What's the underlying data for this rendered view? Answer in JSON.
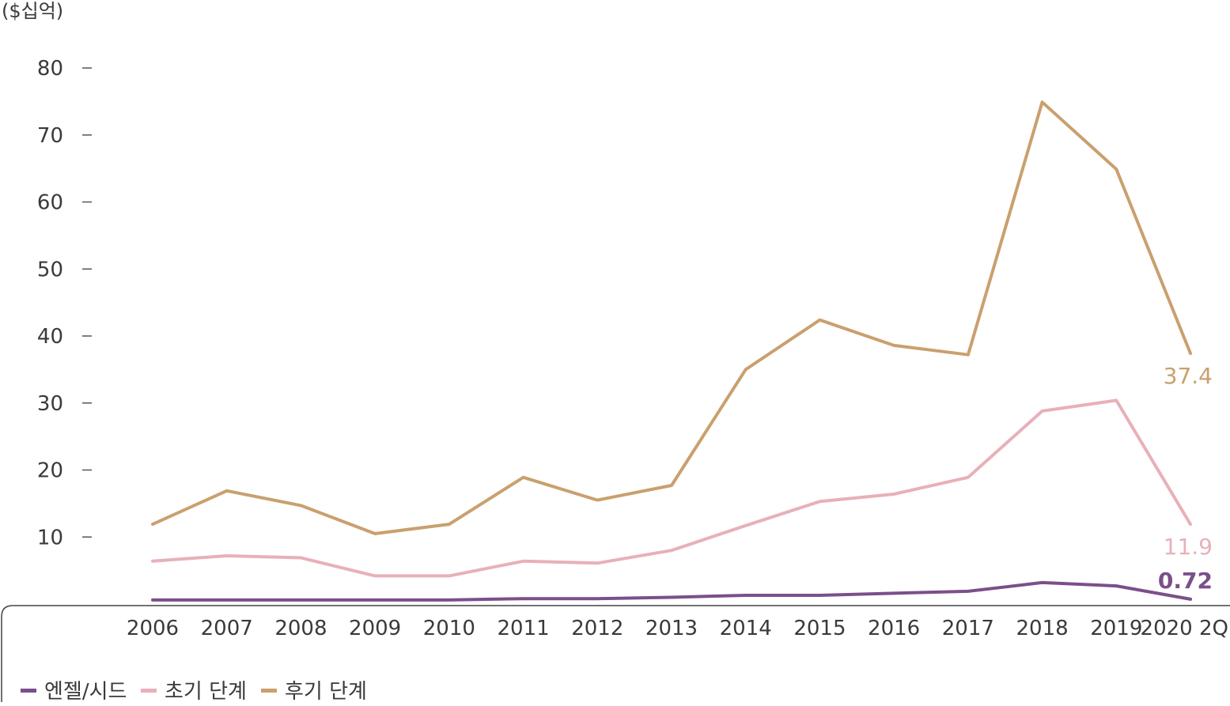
{
  "chart_data": {
    "type": "line",
    "unit_label": "($십억)",
    "categories": [
      "2006",
      "2007",
      "2008",
      "2009",
      "2010",
      "2011",
      "2012",
      "2013",
      "2014",
      "2015",
      "2016",
      "2017",
      "2018",
      "2019",
      "2020 2Q"
    ],
    "yticks": [
      10,
      20,
      30,
      40,
      50,
      60,
      70,
      80
    ],
    "ylim": [
      0,
      80
    ],
    "grid": false,
    "legend_position": "bottom-left",
    "series": [
      {
        "name": "엔젤/시드",
        "color": "#7b4f8a",
        "values": [
          0.6,
          0.6,
          0.6,
          0.6,
          0.6,
          0.8,
          0.8,
          1.0,
          1.3,
          1.3,
          1.6,
          1.9,
          3.2,
          2.7,
          0.72
        ],
        "end_label": "0.72"
      },
      {
        "name": "초기 단계",
        "color": "#e8b0b9",
        "values": [
          6.4,
          7.2,
          6.9,
          4.2,
          4.2,
          6.4,
          6.1,
          8.0,
          11.7,
          15.3,
          16.4,
          18.9,
          28.8,
          30.4,
          11.9
        ],
        "end_label": "11.9"
      },
      {
        "name": "후기 단계",
        "color": "#c9a06e",
        "values": [
          11.9,
          16.9,
          14.7,
          10.5,
          11.9,
          18.9,
          15.5,
          17.7,
          35.0,
          42.4,
          38.6,
          37.2,
          74.9,
          64.9,
          37.4
        ],
        "end_label": "37.4"
      }
    ]
  }
}
